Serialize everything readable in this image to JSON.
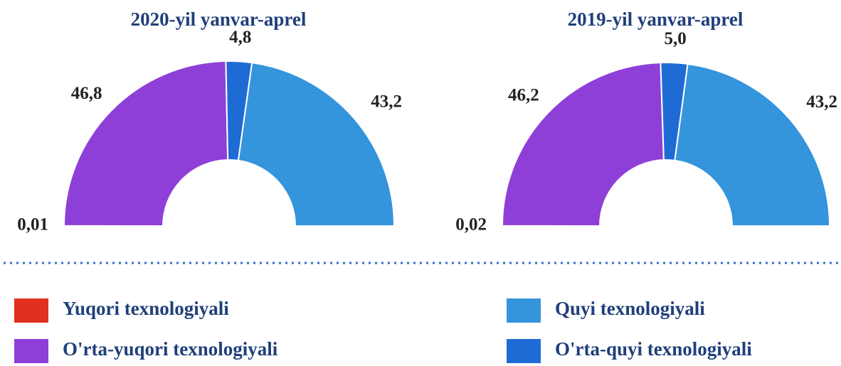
{
  "chart_data": [
    {
      "type": "pie",
      "title": "2020-yil yanvar-aprel",
      "categories": [
        "Yuqori texnologiyali",
        "O'rta-yuqori texnologiyali",
        "O'rta-quyi texnologiyali",
        "Quyi texnologiyali"
      ],
      "values": [
        0.01,
        46.8,
        4.8,
        43.2
      ],
      "value_labels": [
        "0,01",
        "46,8",
        "4,8",
        "43,2"
      ],
      "colors": [
        "#e0301e",
        "#8e3fd8",
        "#1f6bd6",
        "#3494dc"
      ]
    },
    {
      "type": "pie",
      "title": "2019-yil yanvar-aprel",
      "categories": [
        "Yuqori texnologiyali",
        "O'rta-yuqori texnologiyali",
        "O'rta-quyi texnologiyali",
        "Quyi texnologiyali"
      ],
      "values": [
        0.02,
        46.2,
        5.0,
        43.2
      ],
      "value_labels": [
        "0,02",
        "46,2",
        "5,0",
        "43,2"
      ],
      "colors": [
        "#e0301e",
        "#8e3fd8",
        "#1f6bd6",
        "#3494dc"
      ]
    }
  ]
}
